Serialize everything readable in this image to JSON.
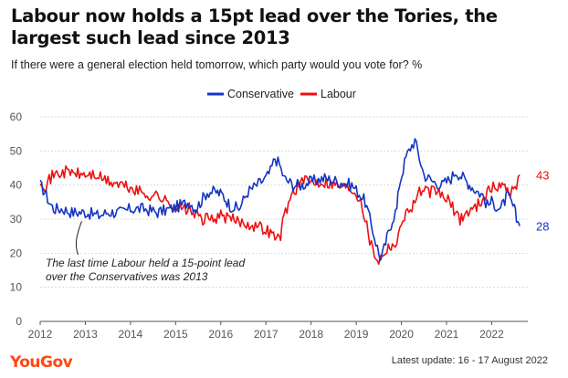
{
  "header": {
    "title": "Labour now holds a 15pt lead over the Tories, the largest such lead since 2013",
    "subtitle": "If there were a general election held tomorrow, which party would you vote for? %"
  },
  "footer": {
    "brand": "YouGov",
    "updated": "Latest update: 16 - 17 August 2022"
  },
  "colors": {
    "conservative": "#1435c4",
    "labour": "#ee1010",
    "grid": "#d9d9d9",
    "axis": "#555555"
  },
  "chart_data": {
    "type": "line",
    "title": "Labour now holds a 15pt lead over the Tories, the largest such lead since 2013",
    "subtitle": "If there were a general election held tomorrow, which party would you vote for? %",
    "xlabel": "",
    "ylabel": "",
    "xlim": [
      2012,
      2022.8
    ],
    "ylim": [
      0,
      60
    ],
    "yticks": [
      0,
      10,
      20,
      30,
      40,
      50,
      60
    ],
    "xticks": [
      2012,
      2013,
      2014,
      2015,
      2016,
      2017,
      2018,
      2019,
      2020,
      2021,
      2022
    ],
    "grid": true,
    "legend": "top-center",
    "series": [
      {
        "name": "Conservative",
        "color": "#1435c4",
        "end_label": "28",
        "x": [
          2012.0,
          2012.1,
          2012.2,
          2012.3,
          2012.5,
          2012.7,
          2013.0,
          2013.3,
          2013.5,
          2013.8,
          2014.0,
          2014.3,
          2014.6,
          2014.9,
          2015.1,
          2015.3,
          2015.45,
          2015.7,
          2015.9,
          2016.05,
          2016.2,
          2016.4,
          2016.6,
          2016.8,
          2017.0,
          2017.1,
          2017.2,
          2017.3,
          2017.4,
          2017.6,
          2017.8,
          2018.0,
          2018.3,
          2018.6,
          2018.9,
          2019.1,
          2019.2,
          2019.3,
          2019.4,
          2019.5,
          2019.55,
          2019.65,
          2019.8,
          2019.9,
          2019.95,
          2020.1,
          2020.2,
          2020.3,
          2020.5,
          2020.7,
          2020.9,
          2021.1,
          2021.2,
          2021.3,
          2021.45,
          2021.6,
          2021.8,
          2021.9,
          2022.0,
          2022.2,
          2022.35,
          2022.5,
          2022.55,
          2022.62
        ],
        "values": [
          40,
          38,
          35,
          33,
          33,
          32,
          32,
          31,
          32,
          32,
          33,
          33,
          32,
          33,
          34,
          35,
          33,
          38,
          38,
          37,
          34,
          33,
          38,
          40,
          42,
          44,
          48,
          46,
          42,
          40,
          40,
          41,
          42,
          41,
          40,
          37,
          35,
          30,
          25,
          20,
          18,
          23,
          30,
          33,
          40,
          48,
          51,
          53,
          43,
          41,
          40,
          42,
          44,
          43,
          41,
          39,
          37,
          34,
          35,
          33,
          37,
          33,
          30,
          28
        ]
      },
      {
        "name": "Labour",
        "color": "#ee1010",
        "end_label": "43",
        "x": [
          2012.0,
          2012.1,
          2012.3,
          2012.6,
          2012.9,
          2013.2,
          2013.5,
          2013.8,
          2014.0,
          2014.2,
          2014.4,
          2014.6,
          2014.8,
          2014.95,
          2015.1,
          2015.3,
          2015.45,
          2015.6,
          2015.8,
          2016.0,
          2016.2,
          2016.5,
          2016.8,
          2017.0,
          2017.2,
          2017.3,
          2017.35,
          2017.4,
          2017.6,
          2017.8,
          2018.0,
          2018.3,
          2018.6,
          2018.9,
          2019.1,
          2019.2,
          2019.3,
          2019.4,
          2019.5,
          2019.55,
          2019.65,
          2019.8,
          2019.9,
          2020.0,
          2020.2,
          2020.4,
          2020.6,
          2020.8,
          2020.9,
          2021.0,
          2021.1,
          2021.2,
          2021.3,
          2021.45,
          2021.6,
          2021.8,
          2021.9,
          2022.0,
          2022.2,
          2022.35,
          2022.45,
          2022.55,
          2022.62
        ],
        "values": [
          42,
          40,
          43,
          44,
          43,
          43,
          41,
          40,
          39,
          38,
          37,
          37,
          35,
          34,
          33,
          33,
          31,
          30,
          30,
          31,
          30,
          29,
          28,
          27,
          25,
          24,
          27,
          31,
          38,
          41,
          41,
          41,
          40,
          39,
          36,
          30,
          24,
          20,
          18,
          19,
          21,
          23,
          22,
          30,
          33,
          38,
          38,
          38,
          37,
          36,
          34,
          32,
          30,
          32,
          33,
          36,
          38,
          39,
          40,
          39,
          38,
          40,
          43
        ]
      }
    ],
    "annotations": [
      {
        "lines": [
          "The last time Labour held a 15-point lead",
          "over the Conservatives was 2013"
        ],
        "x": 2012.92,
        "y": 31
      }
    ]
  }
}
